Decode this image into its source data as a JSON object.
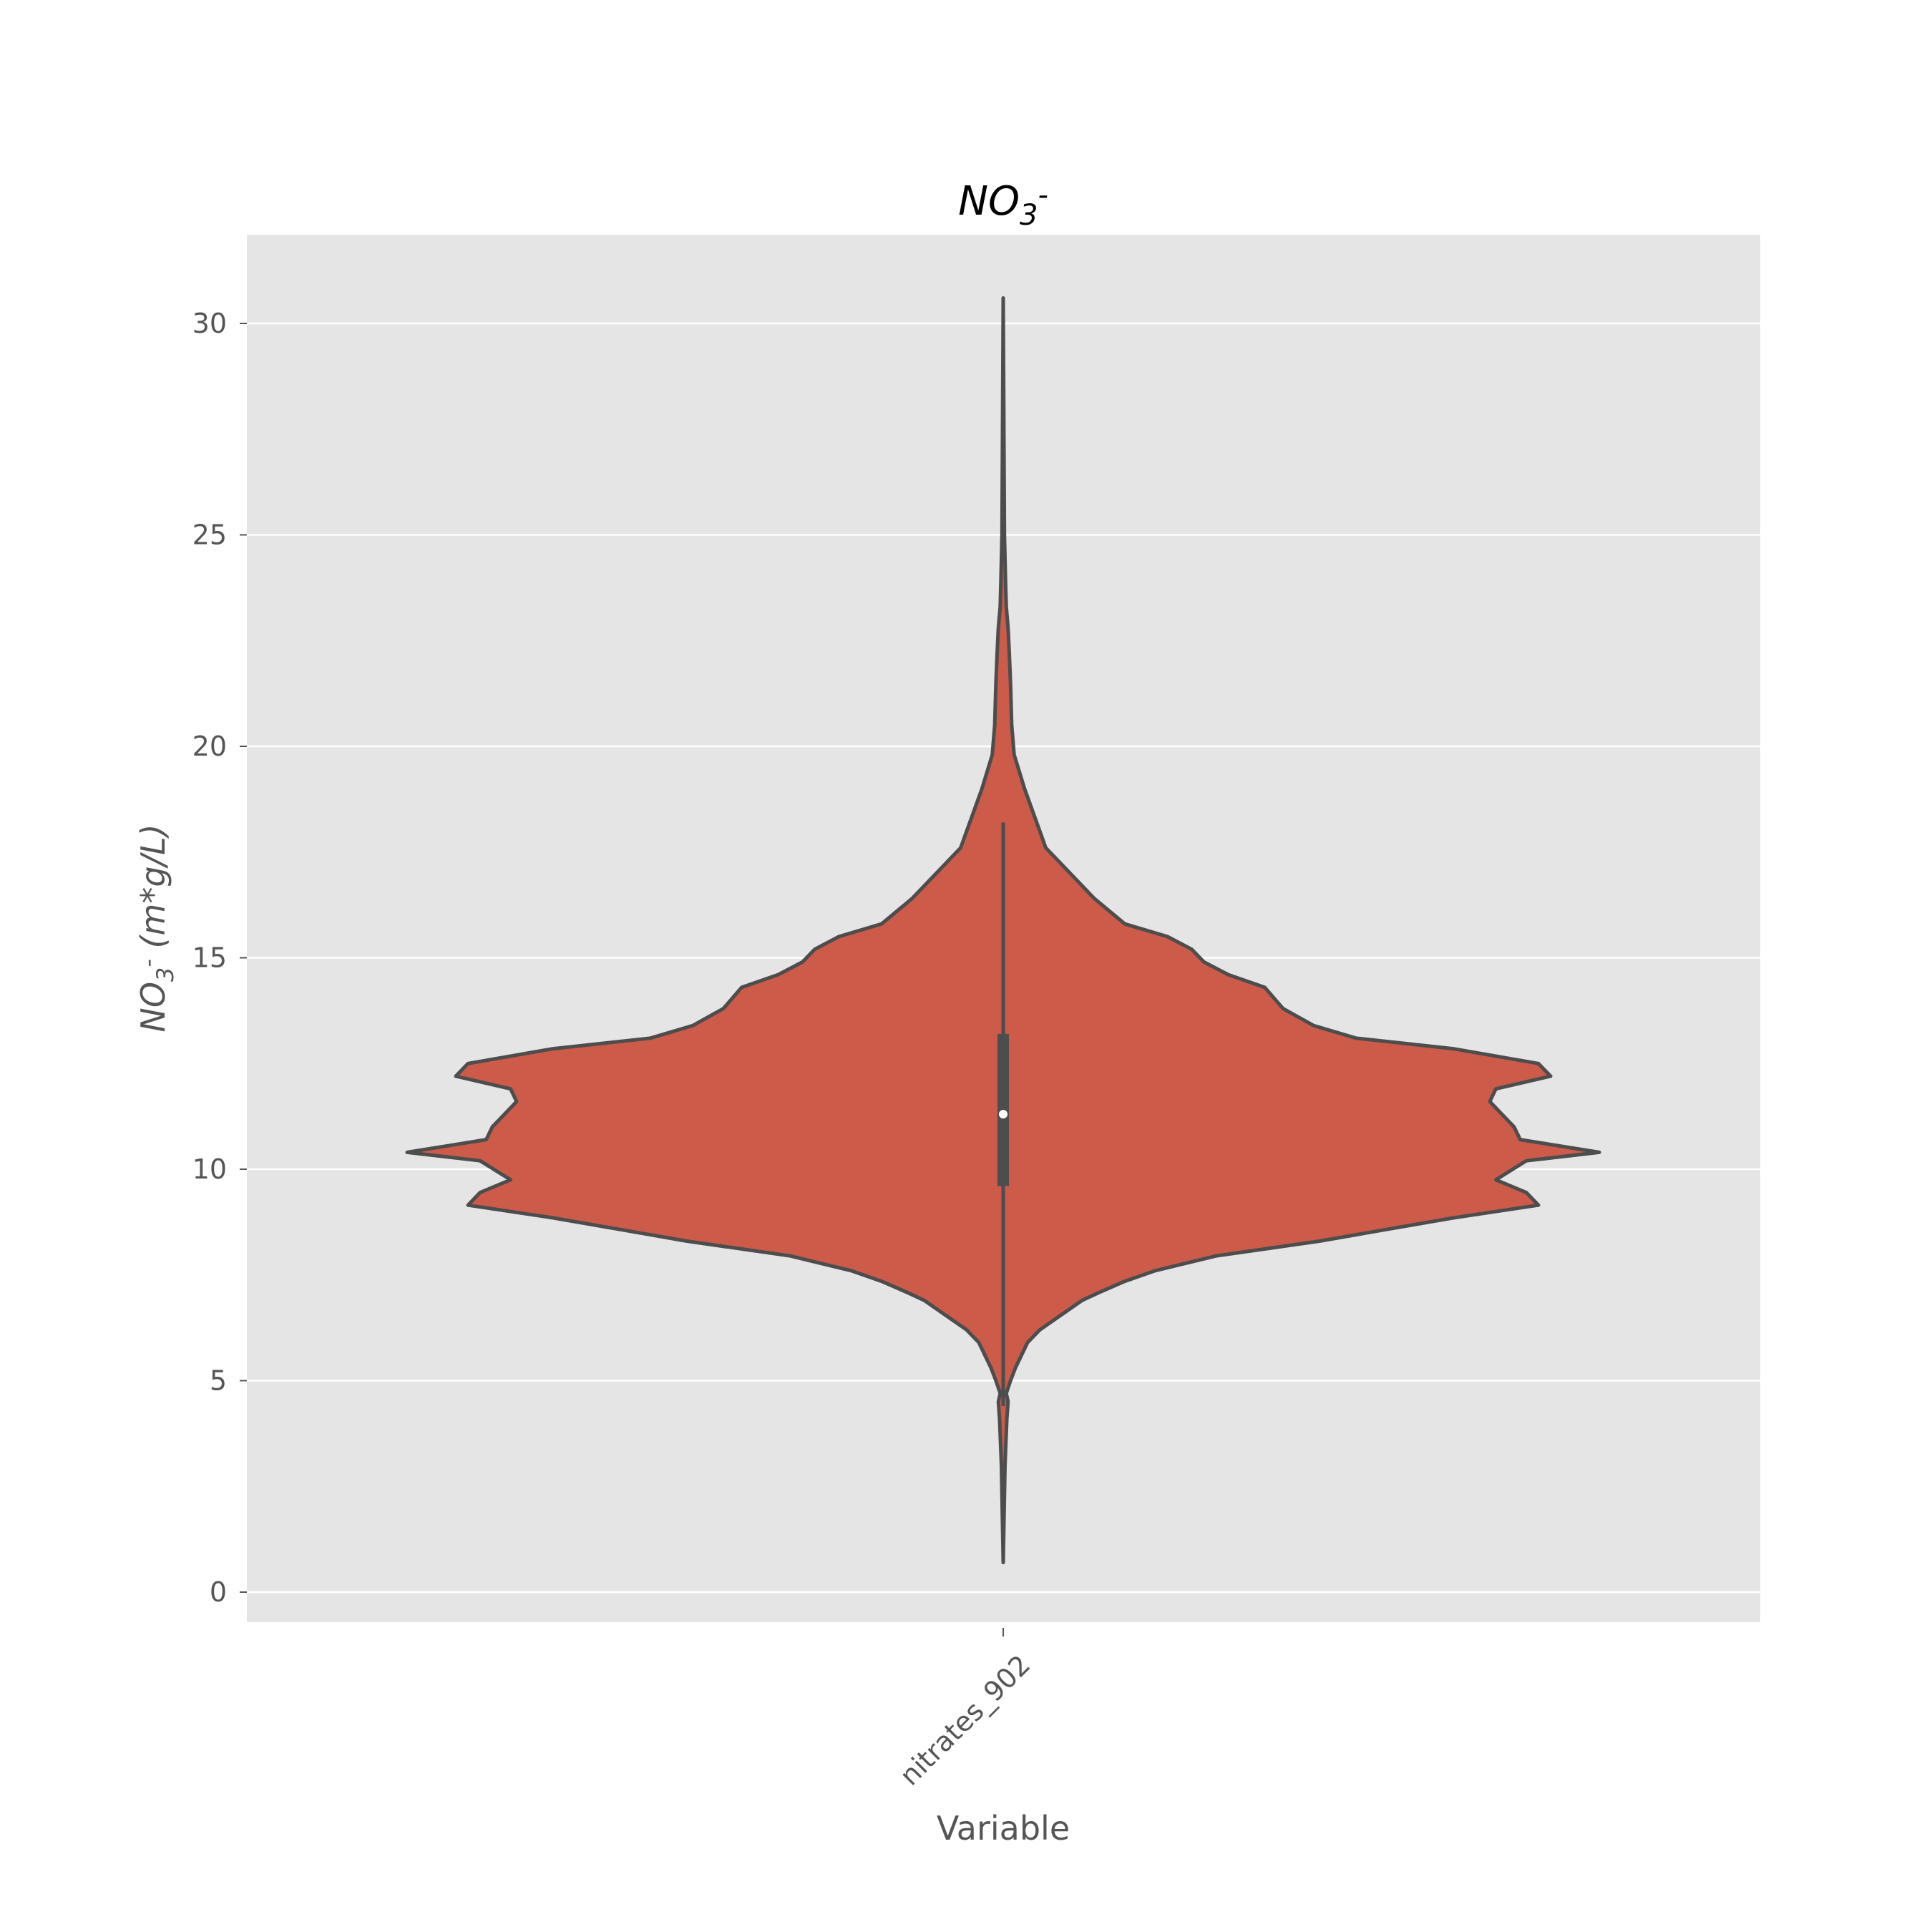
{
  "chart_data": {
    "type": "violin",
    "title": {
      "main": "NO",
      "sub": "3",
      "sup": "-"
    },
    "xlabel": "Variable",
    "ylabel": {
      "main": "NO",
      "sub": "3",
      "sup": "-",
      "unit": " (m*g/L)"
    },
    "categories": [
      "nitrates_902"
    ],
    "ylim": [
      -0.75,
      32
    ],
    "yticks": [
      0,
      5,
      10,
      15,
      20,
      25,
      30
    ],
    "grid": true,
    "colors": {
      "violin_fill": "#CC5B4A",
      "outline": "#4D4D4D",
      "axes_bg": "#E5E5E5",
      "grid": "#FFFFFF",
      "tick_text": "#555555",
      "title_text": "#000000",
      "median_marker": "#FFFFFF"
    },
    "violin": {
      "min": 0.7,
      "max": 30.6,
      "q1": 9.6,
      "median": 11.3,
      "q3": 13.2,
      "whisker_low": 4.4,
      "whisker_high": 18.2,
      "density_profile": [
        [
          0.7,
          0.0
        ],
        [
          3.0,
          0.003
        ],
        [
          4.1,
          0.006
        ],
        [
          4.5,
          0.008
        ],
        [
          4.7,
          0.005
        ],
        [
          5.0,
          0.012
        ],
        [
          5.3,
          0.02
        ],
        [
          5.6,
          0.03
        ],
        [
          5.9,
          0.04
        ],
        [
          6.2,
          0.06
        ],
        [
          6.6,
          0.1
        ],
        [
          6.9,
          0.13
        ],
        [
          7.1,
          0.16
        ],
        [
          7.35,
          0.2
        ],
        [
          7.6,
          0.25
        ],
        [
          7.95,
          0.35
        ],
        [
          8.3,
          0.52
        ],
        [
          8.55,
          0.62
        ],
        [
          8.85,
          0.74
        ],
        [
          9.15,
          0.88
        ],
        [
          9.45,
          0.86
        ],
        [
          9.75,
          0.81
        ],
        [
          10.2,
          0.86
        ],
        [
          10.4,
          0.98
        ],
        [
          10.7,
          0.85
        ],
        [
          11.0,
          0.84
        ],
        [
          11.3,
          0.82
        ],
        [
          11.6,
          0.8
        ],
        [
          11.9,
          0.81
        ],
        [
          12.2,
          0.9
        ],
        [
          12.5,
          0.88
        ],
        [
          12.85,
          0.74
        ],
        [
          13.1,
          0.58
        ],
        [
          13.4,
          0.51
        ],
        [
          13.8,
          0.46
        ],
        [
          14.3,
          0.43
        ],
        [
          14.6,
          0.37
        ],
        [
          14.9,
          0.33
        ],
        [
          15.2,
          0.31
        ],
        [
          15.5,
          0.27
        ],
        [
          15.8,
          0.2
        ],
        [
          16.4,
          0.15
        ],
        [
          17.0,
          0.11
        ],
        [
          17.6,
          0.07
        ],
        [
          18.2,
          0.055
        ],
        [
          19.0,
          0.035
        ],
        [
          19.8,
          0.018
        ],
        [
          20.5,
          0.014
        ],
        [
          21.5,
          0.012
        ],
        [
          22.2,
          0.01
        ],
        [
          22.8,
          0.008
        ],
        [
          23.3,
          0.005
        ],
        [
          23.8,
          0.004
        ],
        [
          25.0,
          0.002
        ],
        [
          28.0,
          0.001
        ],
        [
          30.6,
          0.0
        ]
      ]
    }
  }
}
